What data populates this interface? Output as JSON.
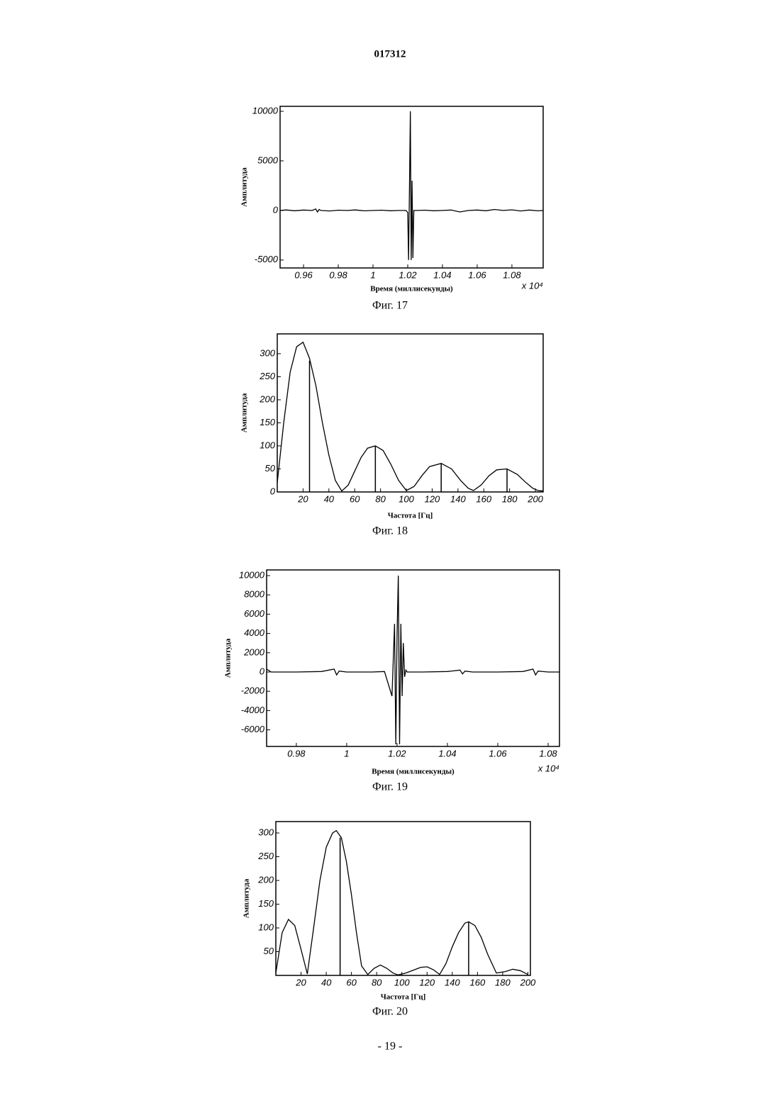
{
  "header": "017312",
  "footer": "- 19 -",
  "chart_data": [
    {
      "type": "line",
      "caption": "Фиг. 17",
      "ylabel": "Амплитуда",
      "xlabel": "Время (миллисекунды)",
      "x_multiplier": "x 10⁴",
      "color": "#000000",
      "grid": false,
      "xlim": [
        0.9465,
        1.098
      ],
      "xticks": [
        0.96,
        0.98,
        1,
        1.02,
        1.04,
        1.06,
        1.08
      ],
      "ylim": [
        -5800,
        10500
      ],
      "yticks": [
        -5000,
        0,
        5000,
        10000
      ],
      "x": [
        0.9465,
        0.95,
        0.955,
        0.96,
        0.965,
        0.967,
        0.968,
        0.969,
        0.97,
        0.975,
        0.98,
        0.985,
        0.99,
        0.995,
        1.0,
        1.005,
        1.01,
        1.015,
        1.019,
        1.02,
        1.0205,
        1.021,
        1.0215,
        1.022,
        1.0225,
        1.023,
        1.0235,
        1.024,
        1.025,
        1.03,
        1.035,
        1.04,
        1.045,
        1.05,
        1.055,
        1.06,
        1.065,
        1.07,
        1.075,
        1.08,
        1.085,
        1.09,
        1.095,
        1.098
      ],
      "values": [
        0,
        50,
        -30,
        40,
        0,
        150,
        -150,
        100,
        0,
        -50,
        30,
        0,
        50,
        -40,
        0,
        30,
        -30,
        0,
        0,
        -200,
        -5000,
        2000,
        10000,
        -5000,
        3000,
        -4800,
        0,
        0,
        0,
        30,
        -30,
        0,
        40,
        -150,
        0,
        40,
        -30,
        100,
        0,
        60,
        -50,
        40,
        -40,
        0
      ]
    },
    {
      "type": "line",
      "caption": "Фиг. 18",
      "ylabel": "Амплитуда",
      "xlabel": "Частота [Гц]",
      "color": "#000000",
      "grid": false,
      "xlim": [
        0,
        206
      ],
      "xticks": [
        20,
        40,
        60,
        80,
        100,
        120,
        140,
        160,
        180,
        200
      ],
      "ylim": [
        0,
        343
      ],
      "yticks": [
        0,
        50,
        100,
        150,
        200,
        250,
        300
      ],
      "x": [
        0,
        5,
        10,
        15,
        20,
        25,
        30,
        35,
        40,
        45,
        50,
        55,
        60,
        65,
        70,
        76,
        82,
        88,
        94,
        100,
        106,
        112,
        118,
        127,
        135,
        142,
        148,
        152,
        158,
        164,
        170,
        178,
        186,
        192,
        198,
        202,
        206
      ],
      "values": [
        20,
        150,
        260,
        315,
        325,
        290,
        230,
        150,
        80,
        25,
        2,
        15,
        45,
        75,
        95,
        100,
        90,
        60,
        25,
        3,
        12,
        35,
        55,
        62,
        50,
        25,
        8,
        3,
        15,
        35,
        48,
        50,
        38,
        22,
        8,
        3,
        2
      ],
      "stems_x": [
        25,
        76,
        127,
        178
      ],
      "stems_values": [
        285,
        100,
        62,
        50
      ]
    },
    {
      "type": "line",
      "caption": "Фиг. 19",
      "ylabel": "Амплитуда",
      "xlabel": "Время (миллисекунды)",
      "x_multiplier": "x 10⁴",
      "color": "#000000",
      "grid": false,
      "xlim": [
        0.9682,
        1.0845
      ],
      "xticks": [
        0.98,
        1,
        1.02,
        1.04,
        1.06,
        1.08
      ],
      "ylim": [
        -7720,
        10590
      ],
      "yticks": [
        -6000,
        -4000,
        -2000,
        0,
        2000,
        4000,
        6000,
        8000,
        10000
      ],
      "x": [
        0.9682,
        0.97,
        0.98,
        0.99,
        0.995,
        0.996,
        0.997,
        1.0,
        1.01,
        1.015,
        1.018,
        1.019,
        1.0195,
        1.02,
        1.0205,
        1.021,
        1.0215,
        1.022,
        1.0225,
        1.023,
        1.0235,
        1.024,
        1.025,
        1.03,
        1.04,
        1.045,
        1.046,
        1.047,
        1.05,
        1.06,
        1.07,
        1.074,
        1.075,
        1.076,
        1.08,
        1.0845
      ],
      "values": [
        300,
        0,
        0,
        50,
        300,
        -300,
        100,
        0,
        0,
        50,
        -2500,
        5000,
        -7500,
        4000,
        10000,
        -7500,
        5000,
        -2500,
        3000,
        -500,
        200,
        0,
        0,
        0,
        50,
        200,
        -200,
        100,
        0,
        0,
        50,
        300,
        -300,
        100,
        0,
        0
      ]
    },
    {
      "type": "line",
      "caption": "Фиг. 20",
      "ylabel": "Амплитуда",
      "xlabel": "Частота [Гц]",
      "color": "#000000",
      "grid": false,
      "xlim": [
        0,
        202
      ],
      "xticks": [
        20,
        40,
        60,
        80,
        100,
        120,
        140,
        160,
        180,
        200
      ],
      "ylim": [
        0,
        324
      ],
      "yticks": [
        50,
        100,
        150,
        200,
        250,
        300
      ],
      "x": [
        0,
        5,
        10,
        15,
        20,
        25,
        30,
        35,
        40,
        45,
        48,
        52,
        56,
        60,
        64,
        68,
        73,
        78,
        83,
        88,
        93,
        97,
        103,
        110,
        115,
        120,
        125,
        130,
        135,
        140,
        145,
        150,
        153,
        158,
        163,
        168,
        175,
        182,
        188,
        194,
        200
      ],
      "values": [
        5,
        90,
        118,
        105,
        55,
        3,
        100,
        200,
        270,
        300,
        305,
        290,
        240,
        170,
        90,
        20,
        2,
        15,
        22,
        15,
        5,
        1,
        5,
        12,
        17,
        18,
        12,
        2,
        25,
        60,
        90,
        110,
        113,
        105,
        80,
        45,
        5,
        8,
        13,
        10,
        2
      ],
      "stems_x": [
        51,
        153
      ],
      "stems_values": [
        290,
        113
      ]
    }
  ]
}
